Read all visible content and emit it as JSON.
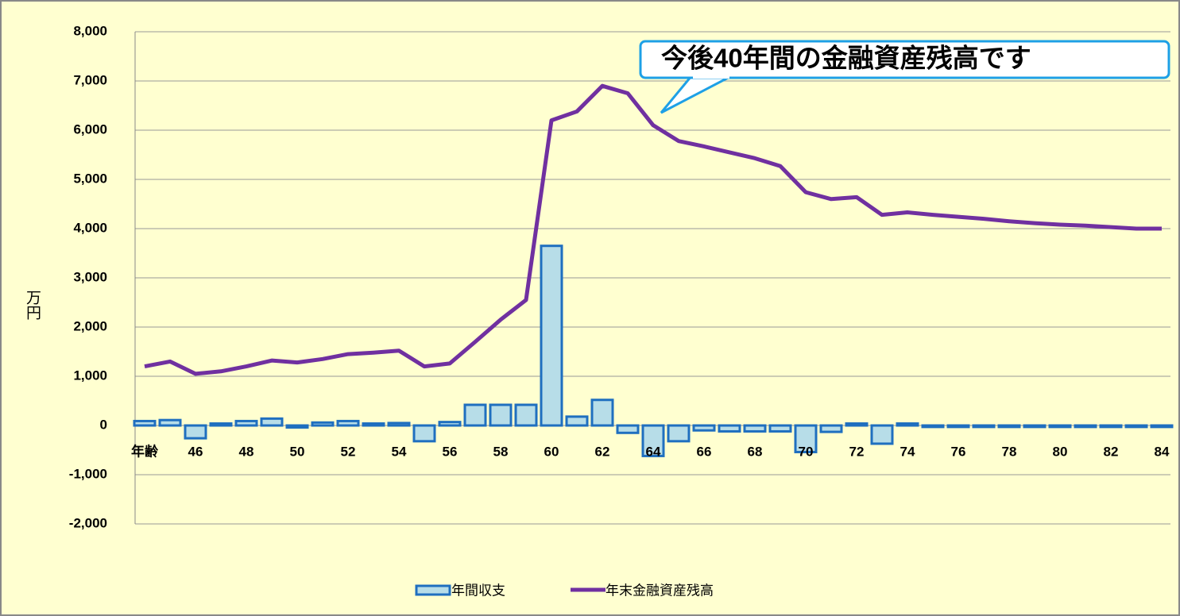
{
  "chart_data": {
    "type": "bar_line",
    "categories": [
      "年齢",
      null,
      "46",
      null,
      "48",
      null,
      "50",
      null,
      "52",
      null,
      "54",
      null,
      "56",
      null,
      "58",
      null,
      "60",
      null,
      "62",
      null,
      "64",
      null,
      "66",
      null,
      "68",
      null,
      "70",
      null,
      "72",
      null,
      "74",
      null,
      "76",
      null,
      "78",
      null,
      "80",
      null,
      "82",
      null,
      "84"
    ],
    "series": [
      {
        "name": "年間収支",
        "type": "bar",
        "color": "#b7dde8",
        "edge_color": "#1f6fbf",
        "values": [
          90,
          110,
          -260,
          40,
          90,
          140,
          -40,
          60,
          90,
          40,
          50,
          -320,
          70,
          420,
          420,
          420,
          3650,
          180,
          520,
          -150,
          -620,
          -320,
          -100,
          -120,
          -120,
          -120,
          -540,
          -130,
          40,
          -370,
          40,
          -30,
          -30,
          -30,
          -30,
          -30,
          -30,
          -30,
          -30,
          -30,
          -30
        ]
      },
      {
        "name": "年末金融資産残高",
        "type": "line",
        "color": "#7030a0",
        "values": [
          1200,
          1300,
          1050,
          1100,
          1200,
          1320,
          1280,
          1350,
          1450,
          1480,
          1520,
          1200,
          1260,
          1700,
          2150,
          2550,
          6200,
          6380,
          6900,
          6750,
          6100,
          5780,
          5670,
          5550,
          5430,
          5270,
          4740,
          4600,
          4640,
          4280,
          4330,
          4280,
          4240,
          4200,
          4150,
          4110,
          4080,
          4060,
          4030,
          4000,
          4000
        ]
      }
    ],
    "y_axis_label": "万円",
    "ylim": [
      -2000,
      8000
    ],
    "yticks": [
      {
        "value": -2000,
        "label": "-2,000"
      },
      {
        "value": -1000,
        "label": "-1,000"
      },
      0,
      {
        "value": 1000,
        "label": "1,000"
      },
      {
        "value": 2000,
        "label": "2,000"
      },
      {
        "value": 3000,
        "label": "3,000"
      },
      {
        "value": 4000,
        "label": "4,000"
      },
      {
        "value": 5000,
        "label": "5,000"
      },
      {
        "value": 6000,
        "label": "6,000"
      },
      {
        "value": 7000,
        "label": "7,000"
      },
      {
        "value": 8000,
        "label": "8,000"
      }
    ],
    "negative_tick_color": "#ff0000",
    "grid": true,
    "legend": "bottom",
    "annotation": "今後40年間の金融資産残高です"
  }
}
